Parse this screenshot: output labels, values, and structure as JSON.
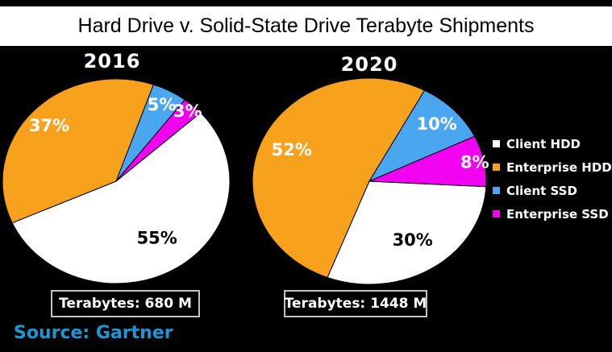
{
  "header": {
    "title": "Hard Drive v. Solid-State Drive Terabyte Shipments"
  },
  "source_text": "Source: Gartner",
  "colors": {
    "page_background": "#FFFFFF",
    "chart_background": "#000000",
    "title_text": "#000000",
    "source_text": "#1E96D4",
    "total_box_border": "#C4C4C4",
    "slice_outline": "#000008"
  },
  "legend": {
    "position": "right",
    "items": [
      {
        "label": "Client HDD",
        "color": "#FFFFFF"
      },
      {
        "label": "Enterprise HDD",
        "color": "#F7A11C"
      },
      {
        "label": "Client SSD",
        "color": "#4BA6F0"
      },
      {
        "label": "Enterprise SSD",
        "color": "#F103F1"
      }
    ]
  },
  "chart_data": [
    {
      "type": "pie",
      "title": "2016",
      "total_label": "Terabytes: 680 M",
      "total_terabytes_m": 680,
      "start_angle_deg": 48,
      "slices": [
        {
          "label": "Client HDD",
          "value_pct": 55,
          "color": "#FFFFFF",
          "text_color": "#000000",
          "label_r": 0.66
        },
        {
          "label": "Enterprise HDD",
          "value_pct": 37,
          "color": "#F7A11C",
          "text_color": "#FFFFFF",
          "label_r": 0.8
        },
        {
          "label": "Client SSD",
          "value_pct": 5,
          "color": "#4BA6F0",
          "text_color": "#FFFFFF",
          "label_r": 0.85
        },
        {
          "label": "Enterprise SSD",
          "value_pct": 3,
          "color": "#F103F1",
          "text_color": "#FFFFFF",
          "label_r": 0.93
        }
      ]
    },
    {
      "type": "pie",
      "title": "2020",
      "total_label": "Terabytes: 1448 M",
      "total_terabytes_m": 1448,
      "start_angle_deg": 93,
      "slices": [
        {
          "label": "Client HDD",
          "value_pct": 30,
          "color": "#FFFFFF",
          "text_color": "#000000",
          "label_r": 0.68
        },
        {
          "label": "Enterprise HDD",
          "value_pct": 52,
          "color": "#F7A11C",
          "text_color": "#FFFFFF",
          "label_r": 0.73
        },
        {
          "label": "Client SSD",
          "value_pct": 10,
          "color": "#4BA6F0",
          "text_color": "#FFFFFF",
          "label_r": 0.8
        },
        {
          "label": "Enterprise SSD",
          "value_pct": 8,
          "color": "#F103F1",
          "text_color": "#FFFFFF",
          "label_r": 0.92
        }
      ]
    }
  ]
}
